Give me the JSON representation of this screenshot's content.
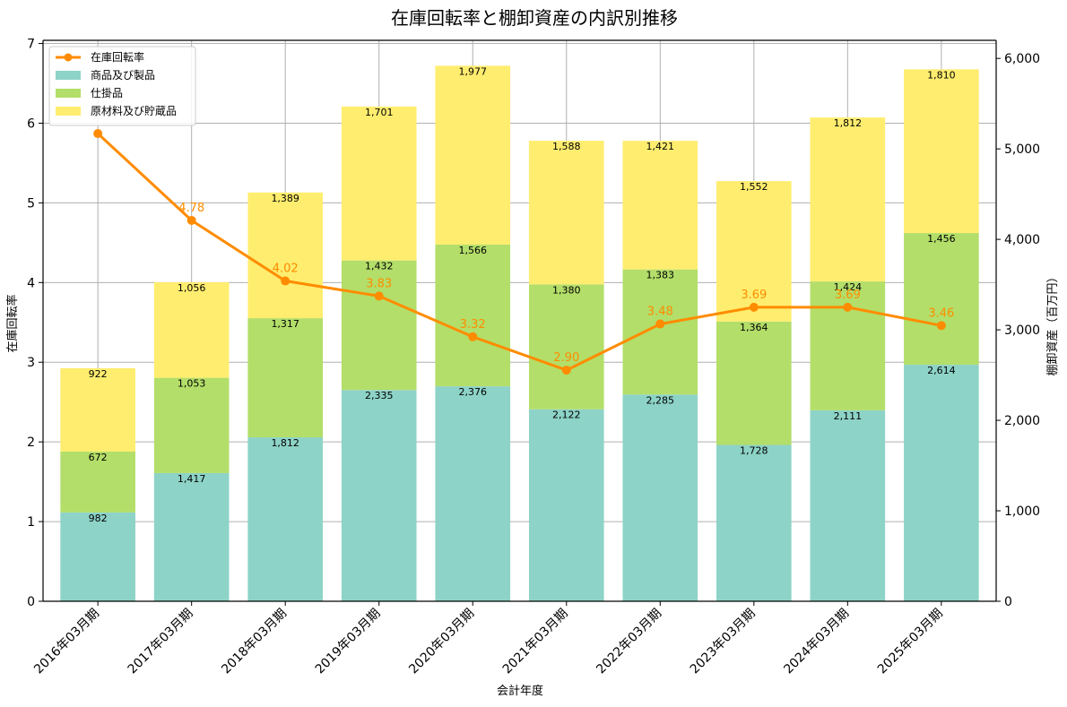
{
  "chart_data": {
    "type": "bar",
    "title": "在庫回転率と棚卸資産の内訳別推移",
    "xlabel": "会計年度",
    "ylabel_left": "在庫回転率",
    "ylabel_right": "棚卸資産（百万円）",
    "categories": [
      "2016年03月期",
      "2017年03月期",
      "2018年03月期",
      "2019年03月期",
      "2020年03月期",
      "2021年03月期",
      "2022年03月期",
      "2023年03月期",
      "2024年03月期",
      "2025年03月期"
    ],
    "ylim_left": [
      0,
      7.04
    ],
    "ylim_right": [
      0,
      6200
    ],
    "yticks_left": [
      "0",
      "1",
      "2",
      "3",
      "4",
      "5",
      "6",
      "7"
    ],
    "yticks_right": [
      "0",
      "1,000",
      "2,000",
      "3,000",
      "4,000",
      "5,000",
      "6,000"
    ],
    "grid": true,
    "legend_position": "top-left",
    "series": [
      {
        "name": "商品及び製品",
        "kind": "stacked-bar",
        "axis": "right",
        "color": "#8dd3c7",
        "values": [
          982,
          1417,
          1812,
          2335,
          2376,
          2122,
          2285,
          1728,
          2111,
          2614
        ],
        "labels": [
          "982",
          "1,417",
          "1,812",
          "2,335",
          "2,376",
          "2,122",
          "2,285",
          "1,728",
          "2,111",
          "2,614"
        ]
      },
      {
        "name": "仕掛品",
        "kind": "stacked-bar",
        "axis": "right",
        "color": "#b3de69",
        "values": [
          672,
          1053,
          1317,
          1432,
          1566,
          1380,
          1383,
          1364,
          1424,
          1456
        ],
        "labels": [
          "672",
          "1,053",
          "1,317",
          "1,432",
          "1,566",
          "1,380",
          "1,383",
          "1,364",
          "1,424",
          "1,456"
        ]
      },
      {
        "name": "原材料及び貯蔵品",
        "kind": "stacked-bar",
        "axis": "right",
        "color": "#ffed6f",
        "values": [
          922,
          1056,
          1389,
          1701,
          1977,
          1588,
          1421,
          1552,
          1812,
          1810
        ],
        "labels": [
          "922",
          "1,056",
          "1,389",
          "1,701",
          "1,977",
          "1,588",
          "1,421",
          "1,552",
          "1,812",
          "1,810"
        ]
      },
      {
        "name": "在庫回転率",
        "kind": "line",
        "axis": "left",
        "color": "#ff8c00",
        "values": [
          5.87,
          4.78,
          4.02,
          3.83,
          3.32,
          2.9,
          3.48,
          3.69,
          3.69,
          3.46
        ],
        "labels": [
          "",
          "4.78",
          "4.02",
          "3.83",
          "3.32",
          "2.90",
          "3.48",
          "3.69",
          "3.69",
          "3.46"
        ]
      }
    ]
  }
}
